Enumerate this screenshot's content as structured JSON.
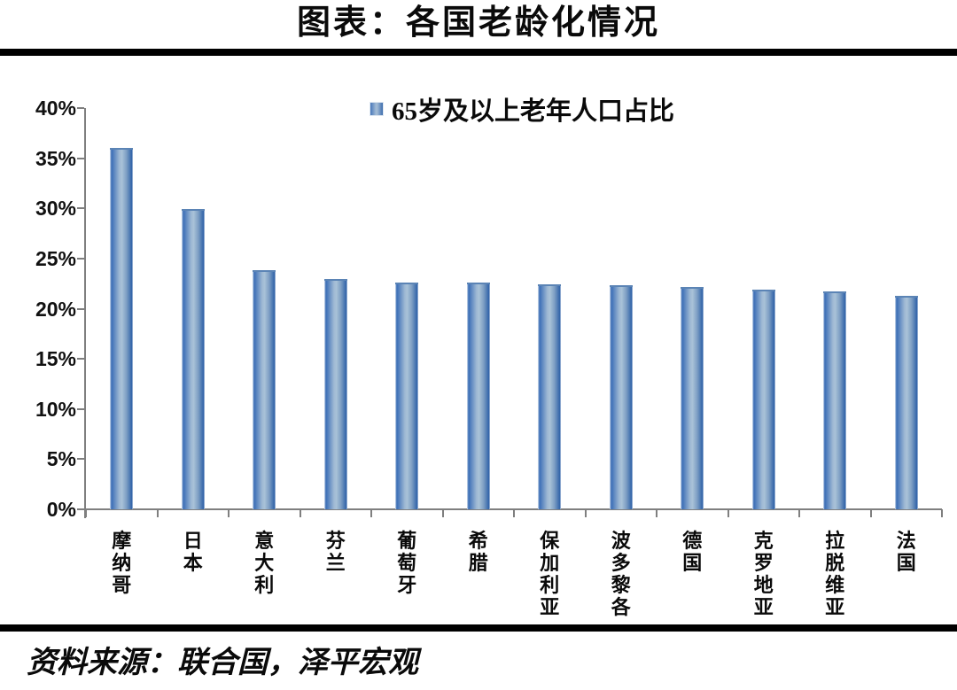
{
  "title": "图表：各国老龄化情况",
  "legend": {
    "label": "65岁及以上老年人口占比"
  },
  "source": "资料来源：联合国，泽平宏观",
  "colors": {
    "bar_edge": "#3a6db6",
    "bar_center": "#a9c2d8",
    "axis": "#7f7f7f",
    "divider": "#000000"
  },
  "chart_data": {
    "type": "bar",
    "title": "图表：各国老龄化情况",
    "legend": [
      "65岁及以上老年人口占比"
    ],
    "legend_position": "top-center",
    "categories": [
      "摩纳哥",
      "日本",
      "意大利",
      "芬兰",
      "葡萄牙",
      "希腊",
      "保加利亚",
      "波多黎各",
      "德国",
      "克罗地亚",
      "拉脱维亚",
      "法国"
    ],
    "values": [
      36.0,
      29.9,
      23.8,
      23.0,
      22.6,
      22.6,
      22.4,
      22.3,
      22.2,
      21.9,
      21.7,
      21.3
    ],
    "xlabel": "",
    "ylabel": "",
    "ylim": [
      0,
      40
    ],
    "yticks": [
      0,
      5,
      10,
      15,
      20,
      25,
      30,
      35,
      40
    ],
    "ytick_suffix": "%",
    "grid": false
  }
}
